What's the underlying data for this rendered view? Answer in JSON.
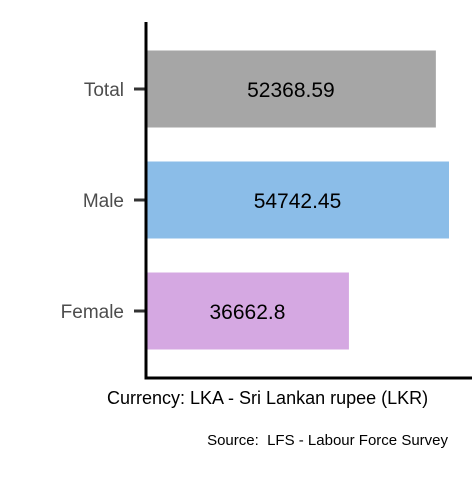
{
  "chart_data": {
    "type": "bar",
    "orientation": "horizontal",
    "categories": [
      "Total",
      "Male",
      "Female"
    ],
    "values": [
      52368.59,
      54742.45,
      36662.8
    ],
    "value_labels": [
      "52368.59",
      "54742.45",
      "36662.8"
    ],
    "colors": [
      "#a6a6a6",
      "#8bbde8",
      "#d5a8e2"
    ],
    "xlim": [
      0,
      54742.45
    ],
    "title": "",
    "xlabel": "Currency: LKA - Sri Lankan rupee (LKR)",
    "ylabel": "",
    "caption": "Source:  LFS - Labour Force Survey",
    "grid": false,
    "legend": "none"
  }
}
